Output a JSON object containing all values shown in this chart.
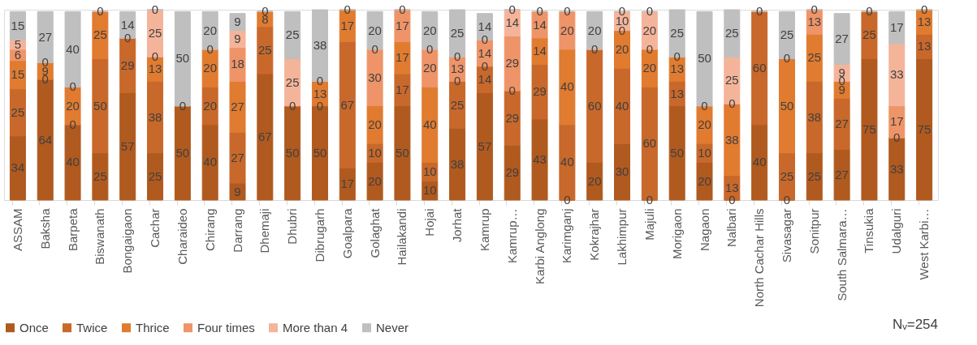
{
  "chart_data": {
    "type": "bar",
    "stacked": true,
    "grid": false,
    "legend": "bottom",
    "categories": [
      "ASSAM",
      "Baksha",
      "Barpeta",
      "Biswanath",
      "Bongaigaon",
      "Cachar",
      "Charaideo",
      "Chirang",
      "Darrang",
      "Dhemaji",
      "Dhubri",
      "Dibrugarh",
      "Goalpara",
      "Golaghat",
      "Hailakandi",
      "Hojai",
      "Jorhat",
      "Kamrup",
      "Kamrup…",
      "Karbi Anglong",
      "Karimganj",
      "Kokrajhar",
      "Lakhimpur",
      "Majuli",
      "Morigaon",
      "Nagaon",
      "Nalbari",
      "North Cachar Hills",
      "Sivasagar",
      "Sonitpur",
      "South Salmara…",
      "Tinsukia",
      "Udalguri",
      "West Karbi…"
    ],
    "series": [
      {
        "name": "Once",
        "color": "#b05a1f",
        "values": [
          34,
          64,
          40,
          25,
          57,
          25,
          50,
          40,
          9,
          67,
          50,
          50,
          17,
          20,
          50,
          10,
          38,
          57,
          29,
          43,
          0,
          20,
          30,
          0,
          50,
          20,
          0,
          40,
          0,
          25,
          27,
          75,
          33,
          75
        ],
        "value_labels": [
          "34",
          "64",
          "40",
          "25",
          "57",
          "25",
          "50",
          "40",
          "9",
          "67",
          "50",
          "50",
          "17",
          "20",
          "50",
          "10",
          "38",
          "57",
          "29",
          "43",
          "0",
          "20",
          "30",
          "0",
          "50",
          "20",
          "0",
          "40",
          "0",
          "25",
          "27",
          "75",
          "33",
          "75"
        ]
      },
      {
        "name": "Twice",
        "color": "#c8682a",
        "values": [
          25,
          0,
          0,
          50,
          29,
          38,
          0,
          20,
          27,
          25,
          0,
          0,
          67,
          10,
          17,
          10,
          25,
          14,
          29,
          29,
          40,
          60,
          40,
          60,
          13,
          10,
          13,
          60,
          25,
          38,
          27,
          25,
          0,
          13
        ],
        "value_labels": [
          "25",
          "0",
          "0",
          "50",
          "29",
          "38",
          "0",
          "20",
          "27",
          "25",
          "0",
          "0",
          "67",
          "10",
          "17",
          "10",
          "25",
          "14",
          "29",
          "29",
          "40",
          "60",
          "40",
          "60",
          "13",
          "10",
          "13",
          "60",
          "25",
          "38",
          "27",
          "25",
          "0",
          "13"
        ]
      },
      {
        "name": "Thrice",
        "color": "#e07b30",
        "values": [
          15,
          9,
          20,
          25,
          0,
          13,
          0,
          20,
          27,
          8,
          0,
          13,
          17,
          20,
          17,
          40,
          0,
          0,
          0,
          14,
          40,
          0,
          20,
          20,
          13,
          20,
          38,
          0,
          50,
          25,
          9,
          0,
          0,
          13
        ],
        "value_labels": [
          "15",
          "9",
          "20",
          "25",
          "0",
          "13",
          null,
          "20",
          "27",
          "8",
          null,
          "13",
          "17",
          "20",
          "17",
          "40",
          "0",
          "0",
          "0",
          "14",
          "40",
          "0",
          "20",
          "20",
          "13",
          "20",
          "38",
          "0",
          "50",
          "25",
          "9",
          "0",
          null,
          "13"
        ]
      },
      {
        "name": "Four times",
        "color": "#ee9468",
        "values": [
          6,
          0,
          0,
          0,
          0,
          0,
          0,
          0,
          18,
          0,
          0,
          0,
          0,
          30,
          17,
          20,
          13,
          14,
          29,
          14,
          20,
          0,
          0,
          0,
          0,
          0,
          0,
          0,
          0,
          13,
          0,
          0,
          17,
          0
        ],
        "value_labels": [
          "6",
          "0",
          "0",
          "0",
          null,
          "0",
          null,
          "0",
          "18",
          "0",
          null,
          "0",
          "0",
          "30",
          "17",
          "20",
          "13",
          "14",
          "29",
          "14",
          "20",
          null,
          "0",
          "0",
          "0",
          "0",
          "0",
          null,
          "0",
          "13",
          "0",
          null,
          "17",
          "0"
        ]
      },
      {
        "name": "More than 4",
        "color": "#f4b49a",
        "values": [
          5,
          0,
          0,
          0,
          0,
          25,
          0,
          0,
          9,
          0,
          25,
          0,
          0,
          0,
          0,
          0,
          0,
          0,
          14,
          0,
          0,
          0,
          10,
          20,
          0,
          0,
          25,
          0,
          0,
          0,
          9,
          0,
          33,
          0
        ],
        "value_labels": [
          "5",
          null,
          null,
          null,
          null,
          "25",
          null,
          null,
          "9",
          null,
          "25",
          null,
          null,
          "0",
          "0",
          "0",
          "0",
          "0",
          "14",
          "0",
          "0",
          null,
          "10",
          "20",
          null,
          null,
          "25",
          null,
          null,
          "0",
          "9",
          null,
          "33",
          null
        ]
      },
      {
        "name": "Never",
        "color": "#bfbfbf",
        "values": [
          15,
          27,
          40,
          0,
          14,
          0,
          50,
          20,
          9,
          0,
          25,
          38,
          0,
          20,
          0,
          20,
          25,
          14,
          0,
          0,
          0,
          20,
          0,
          0,
          25,
          50,
          25,
          0,
          25,
          0,
          27,
          0,
          17,
          0
        ],
        "value_labels": [
          "15",
          "27",
          "40",
          null,
          "14",
          "0",
          "50",
          "20",
          "9",
          null,
          "25",
          "38",
          null,
          "20",
          null,
          "20",
          "25",
          "14",
          "0",
          null,
          null,
          "20",
          "0",
          "0",
          "25",
          "50",
          "25",
          null,
          "25",
          null,
          "27",
          null,
          "17",
          null
        ]
      }
    ],
    "annotations": [
      "Nᵥ=254"
    ]
  }
}
